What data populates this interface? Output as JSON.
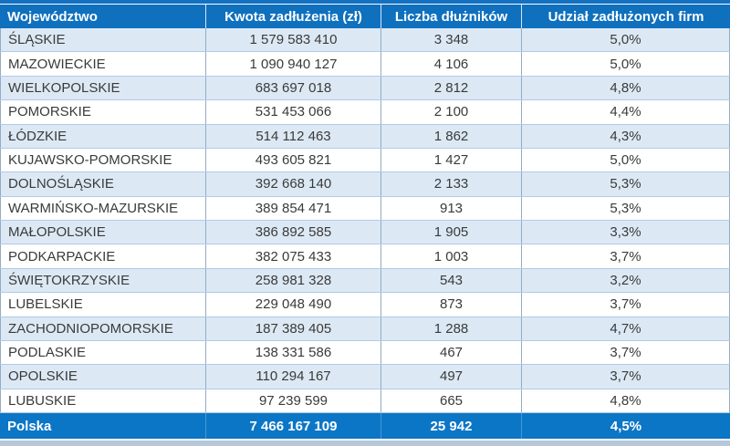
{
  "colors": {
    "header_bg": "#0F70BE",
    "footer_bg": "#0C76C6",
    "stripe_bg": "#DCE9F5",
    "vertical_border": "#93ACC4",
    "horizontal_border": "#AECBE4",
    "header_text": "#FFFFFF",
    "body_text": "#3A3A3A"
  },
  "chart_data": {
    "type": "table",
    "columns": [
      "Województwo",
      "Kwota zadłużenia (zł)",
      "Liczba dłużników",
      "Udział zadłużonych firm"
    ],
    "rows": [
      [
        "ŚLĄSKIE",
        "1 579 583 410",
        "3 348",
        "5,0%"
      ],
      [
        "MAZOWIECKIE",
        "1 090 940 127",
        "4 106",
        "5,0%"
      ],
      [
        "WIELKOPOLSKIE",
        "683 697 018",
        "2 812",
        "4,8%"
      ],
      [
        "POMORSKIE",
        "531 453 066",
        "2 100",
        "4,4%"
      ],
      [
        "ŁÓDZKIE",
        "514 112 463",
        "1 862",
        "4,3%"
      ],
      [
        "KUJAWSKO-POMORSKIE",
        "493 605 821",
        "1 427",
        "5,0%"
      ],
      [
        "DOLNOŚLĄSKIE",
        "392 668 140",
        "2 133",
        "5,3%"
      ],
      [
        "WARMIŃSKO-MAZURSKIE",
        "389 854 471",
        "913",
        "5,3%"
      ],
      [
        "MAŁOPOLSKIE",
        "386 892 585",
        "1 905",
        "3,3%"
      ],
      [
        "PODKARPACKIE",
        "382 075 433",
        "1 003",
        "3,7%"
      ],
      [
        "ŚWIĘTOKRZYSKIE",
        "258 981 328",
        "543",
        "3,2%"
      ],
      [
        "LUBELSKIE",
        "229 048 490",
        "873",
        "3,7%"
      ],
      [
        "ZACHODNIOPOMORSKIE",
        "187 389 405",
        "1 288",
        "4,7%"
      ],
      [
        "PODLASKIE",
        "138 331 586",
        "467",
        "3,7%"
      ],
      [
        "OPOLSKIE",
        "110 294 167",
        "497",
        "3,7%"
      ],
      [
        "LUBUSKIE",
        "97 239 599",
        "665",
        "4,8%"
      ]
    ],
    "footer": [
      "Polska",
      "7 466 167 109",
      "25 942",
      "4,5%"
    ]
  }
}
